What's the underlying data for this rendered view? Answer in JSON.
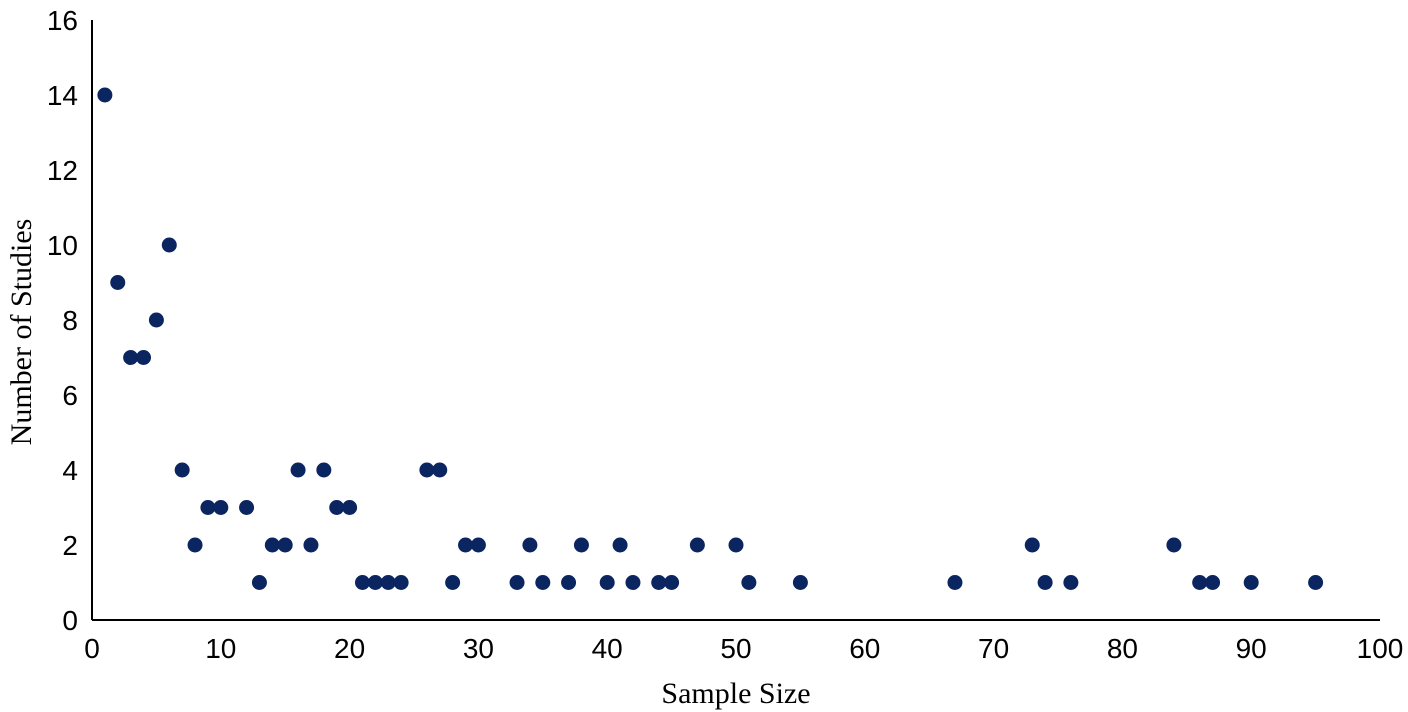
{
  "chart_data": {
    "type": "scatter",
    "xlabel": "Sample Size",
    "ylabel": "Number of Studies",
    "xlim": [
      0,
      100
    ],
    "ylim": [
      0,
      16
    ],
    "x_ticks": [
      0,
      10,
      20,
      30,
      40,
      50,
      60,
      70,
      80,
      90,
      100
    ],
    "y_ticks": [
      0,
      2,
      4,
      6,
      8,
      10,
      12,
      14,
      16
    ],
    "grid": false,
    "marker_color": "#0b2560",
    "points": [
      {
        "x": 1,
        "y": 14
      },
      {
        "x": 2,
        "y": 9
      },
      {
        "x": 3,
        "y": 7
      },
      {
        "x": 4,
        "y": 7
      },
      {
        "x": 5,
        "y": 8
      },
      {
        "x": 6,
        "y": 10
      },
      {
        "x": 7,
        "y": 4
      },
      {
        "x": 8,
        "y": 2
      },
      {
        "x": 9,
        "y": 3
      },
      {
        "x": 10,
        "y": 3
      },
      {
        "x": 12,
        "y": 3
      },
      {
        "x": 13,
        "y": 1
      },
      {
        "x": 14,
        "y": 2
      },
      {
        "x": 15,
        "y": 2
      },
      {
        "x": 16,
        "y": 4
      },
      {
        "x": 17,
        "y": 2
      },
      {
        "x": 18,
        "y": 4
      },
      {
        "x": 19,
        "y": 3
      },
      {
        "x": 20,
        "y": 3
      },
      {
        "x": 21,
        "y": 1
      },
      {
        "x": 22,
        "y": 1
      },
      {
        "x": 23,
        "y": 1
      },
      {
        "x": 24,
        "y": 1
      },
      {
        "x": 26,
        "y": 4
      },
      {
        "x": 27,
        "y": 4
      },
      {
        "x": 28,
        "y": 1
      },
      {
        "x": 29,
        "y": 2
      },
      {
        "x": 30,
        "y": 2
      },
      {
        "x": 33,
        "y": 1
      },
      {
        "x": 34,
        "y": 2
      },
      {
        "x": 35,
        "y": 1
      },
      {
        "x": 37,
        "y": 1
      },
      {
        "x": 38,
        "y": 2
      },
      {
        "x": 40,
        "y": 1
      },
      {
        "x": 41,
        "y": 2
      },
      {
        "x": 42,
        "y": 1
      },
      {
        "x": 44,
        "y": 1
      },
      {
        "x": 45,
        "y": 1
      },
      {
        "x": 47,
        "y": 2
      },
      {
        "x": 50,
        "y": 2
      },
      {
        "x": 51,
        "y": 1
      },
      {
        "x": 55,
        "y": 1
      },
      {
        "x": 67,
        "y": 1
      },
      {
        "x": 73,
        "y": 2
      },
      {
        "x": 74,
        "y": 1
      },
      {
        "x": 76,
        "y": 1
      },
      {
        "x": 84,
        "y": 2
      },
      {
        "x": 86,
        "y": 1
      },
      {
        "x": 87,
        "y": 1
      },
      {
        "x": 90,
        "y": 1
      },
      {
        "x": 95,
        "y": 1
      }
    ]
  }
}
